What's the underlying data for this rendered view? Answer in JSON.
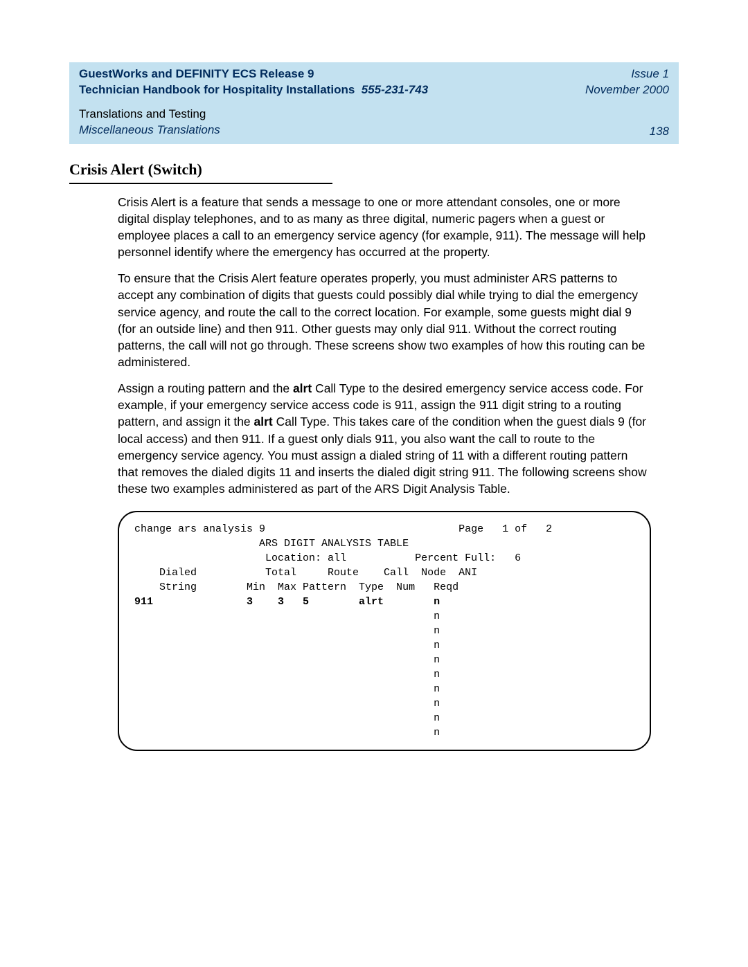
{
  "header": {
    "product_line": "GuestWorks and DEFINITY ECS Release 9",
    "manual_title": "Technician Handbook for Hospitality Installations",
    "doc_number": "555-231-743",
    "issue": "Issue 1",
    "date": "November 2000",
    "chapter": "Translations and Testing",
    "section": "Miscellaneous Translations",
    "page_number": "138"
  },
  "section_title": "Crisis Alert (Switch)",
  "paragraphs": {
    "p1": "Crisis Alert is a feature that sends a message to one or more attendant consoles, one or more digital display telephones, and to as many as three digital, numeric pagers when a guest or employee places a call to an emergency service agency (for example, 911). The message will help personnel identify where the emergency has occurred at the property.",
    "p2": "To ensure that the Crisis Alert feature operates properly, you must administer ARS patterns to accept any combination of digits that guests could possibly dial while trying to dial the emergency service agency, and route the call to the correct location. For example, some guests might dial 9 (for an outside line) and then 911. Other guests may only dial 911. Without the correct routing patterns, the call will not go through. These screens show two examples of how this routing can be administered.",
    "p3_a": "Assign a routing pattern and the ",
    "p3_b": "alrt",
    "p3_c": " Call Type to the desired emergency service access code. For example, if your emergency service access code is 911, assign the 911 digit string to a routing pattern, and assign it the ",
    "p3_d": "alrt",
    "p3_e": " Call Type. This takes care of the condition when the guest dials 9 (for local access) and then 911. If a guest only dials 911, you also want the call to route to the emergency service agency. You must assign a dialed string of 11 with a different routing pattern that removes the dialed digits 11 and inserts the dialed digit string 911. The following screens show these two examples administered as part of the ARS Digit Analysis Table."
  },
  "terminal": {
    "command": "change ars analysis 9",
    "page_label": "Page",
    "page_of": "1 of   2",
    "title": "ARS DIGIT ANALYSIS TABLE",
    "location_label": "Location:",
    "location_value": "all",
    "percent_full_label": "Percent Full:",
    "percent_full_value": "6",
    "columns": {
      "dialed": "Dialed",
      "string": "String",
      "total": "Total",
      "min": "Min",
      "max": "Max",
      "route": "Route",
      "pattern": "Pattern",
      "call": "Call",
      "type": "Type",
      "node": "Node",
      "num": "Num",
      "ani": "ANI",
      "reqd": "Reqd"
    },
    "rows": [
      {
        "dialed": "911",
        "min": "3",
        "max": "3",
        "pattern": "5",
        "type": "alrt",
        "num": "",
        "ani": "n",
        "bold": true
      },
      {
        "dialed": "",
        "min": "",
        "max": "",
        "pattern": "",
        "type": "",
        "num": "",
        "ani": "n",
        "bold": false
      },
      {
        "dialed": "",
        "min": "",
        "max": "",
        "pattern": "",
        "type": "",
        "num": "",
        "ani": "n",
        "bold": false
      },
      {
        "dialed": "",
        "min": "",
        "max": "",
        "pattern": "",
        "type": "",
        "num": "",
        "ani": "n",
        "bold": false
      },
      {
        "dialed": "",
        "min": "",
        "max": "",
        "pattern": "",
        "type": "",
        "num": "",
        "ani": "n",
        "bold": false
      },
      {
        "dialed": "",
        "min": "",
        "max": "",
        "pattern": "",
        "type": "",
        "num": "",
        "ani": "n",
        "bold": false
      },
      {
        "dialed": "",
        "min": "",
        "max": "",
        "pattern": "",
        "type": "",
        "num": "",
        "ani": "n",
        "bold": false
      },
      {
        "dialed": "",
        "min": "",
        "max": "",
        "pattern": "",
        "type": "",
        "num": "",
        "ani": "n",
        "bold": false
      },
      {
        "dialed": "",
        "min": "",
        "max": "",
        "pattern": "",
        "type": "",
        "num": "",
        "ani": "n",
        "bold": false
      },
      {
        "dialed": "",
        "min": "",
        "max": "",
        "pattern": "",
        "type": "",
        "num": "",
        "ani": "n",
        "bold": false
      }
    ]
  },
  "style": {
    "header_bg": "#c3e1f0",
    "header_text_dark": "#002b5c",
    "body_font_size_pt": 13,
    "title_font_family": "Times New Roman",
    "mono_font_family": "Courier New"
  }
}
